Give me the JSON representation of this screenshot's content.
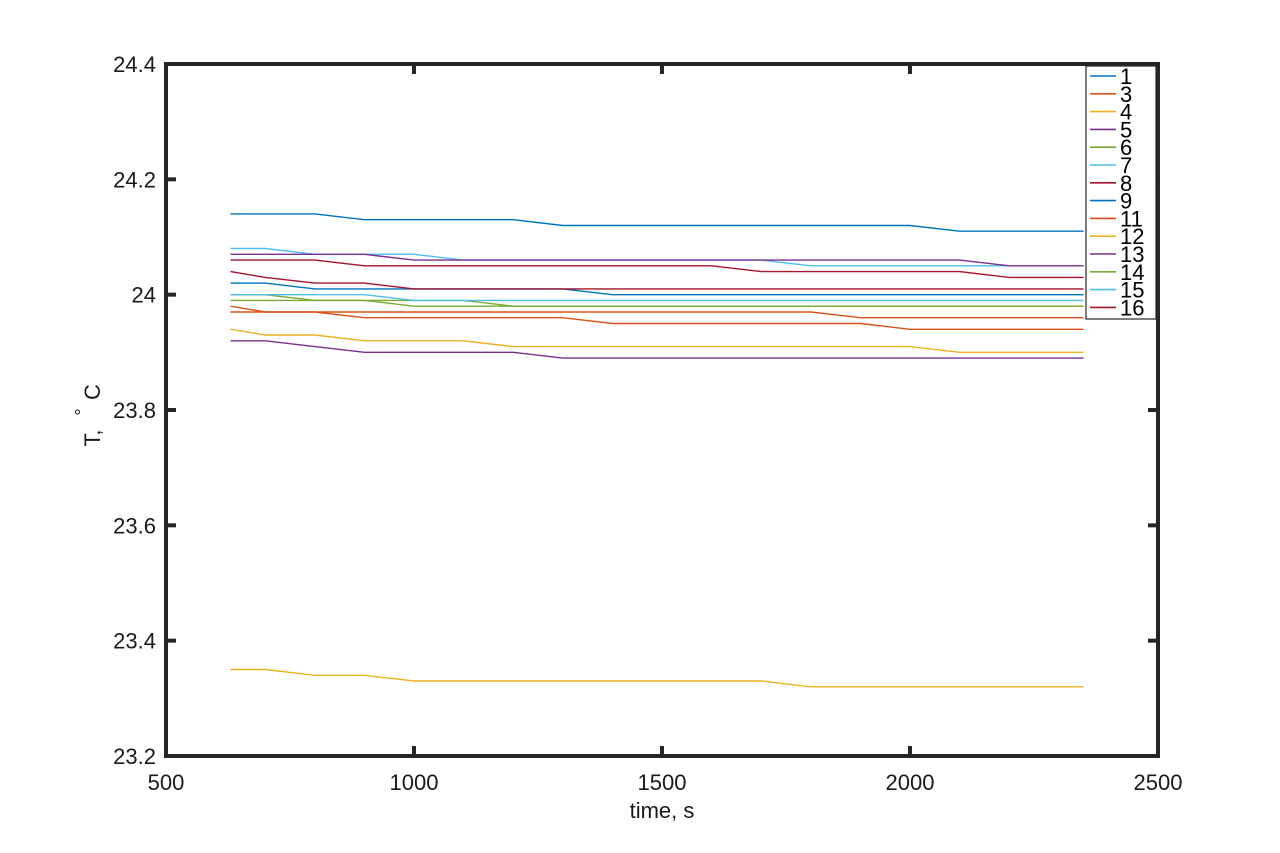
{
  "chart_data": {
    "type": "line",
    "title": "",
    "xlabel": "time, s",
    "ylabel_parts": [
      "T,",
      "°",
      "C"
    ],
    "xlim": [
      500,
      2500
    ],
    "ylim": [
      23.2,
      24.4
    ],
    "xticks": [
      500,
      1000,
      1500,
      2000,
      2500
    ],
    "xtick_labels": [
      "500",
      "1000",
      "1500",
      "2000",
      "2500"
    ],
    "yticks": [
      23.2,
      23.4,
      23.6,
      23.8,
      24.0,
      24.2,
      24.4
    ],
    "ytick_labels": [
      "23.2",
      "23.4",
      "23.6",
      "23.8",
      "24",
      "24.2",
      "24.4"
    ],
    "grid": false,
    "legend_position": "top-right",
    "x": [
      630,
      700,
      800,
      900,
      1000,
      1100,
      1200,
      1300,
      1400,
      1500,
      1600,
      1700,
      1800,
      1900,
      2000,
      2100,
      2200,
      2300,
      2350
    ],
    "series": [
      {
        "name": "1",
        "color": "#0072BD",
        "values": [
          24.02,
          24.02,
          24.01,
          24.01,
          24.01,
          24.01,
          24.01,
          24.01,
          24.0,
          24.0,
          24.0,
          24.0,
          24.0,
          24.0,
          24.0,
          24.0,
          24.0,
          24.0,
          24.0
        ]
      },
      {
        "name": "3",
        "color": "#D95319",
        "values": [
          23.98,
          23.97,
          23.97,
          23.96,
          23.96,
          23.96,
          23.96,
          23.96,
          23.95,
          23.95,
          23.95,
          23.95,
          23.95,
          23.95,
          23.94,
          23.94,
          23.94,
          23.94,
          23.94
        ]
      },
      {
        "name": "4",
        "color": "#EDB120",
        "values": [
          23.94,
          23.93,
          23.93,
          23.92,
          23.92,
          23.92,
          23.91,
          23.91,
          23.91,
          23.91,
          23.91,
          23.91,
          23.91,
          23.91,
          23.91,
          23.9,
          23.9,
          23.9,
          23.9
        ]
      },
      {
        "name": "5",
        "color": "#7E2F8E",
        "values": [
          23.92,
          23.92,
          23.91,
          23.9,
          23.9,
          23.9,
          23.9,
          23.89,
          23.89,
          23.89,
          23.89,
          23.89,
          23.89,
          23.89,
          23.89,
          23.89,
          23.89,
          23.89,
          23.89
        ]
      },
      {
        "name": "6",
        "color": "#77AC30",
        "values": [
          24.0,
          24.0,
          23.99,
          23.99,
          23.98,
          23.98,
          23.98,
          23.98,
          23.98,
          23.98,
          23.98,
          23.98,
          23.98,
          23.98,
          23.98,
          23.98,
          23.98,
          23.98,
          23.98
        ]
      },
      {
        "name": "7",
        "color": "#4DBEEE",
        "values": [
          24.08,
          24.08,
          24.07,
          24.07,
          24.07,
          24.06,
          24.06,
          24.06,
          24.06,
          24.06,
          24.06,
          24.06,
          24.05,
          24.05,
          24.05,
          24.05,
          24.05,
          24.05,
          24.05
        ]
      },
      {
        "name": "8",
        "color": "#A2142F",
        "values": [
          24.06,
          24.06,
          24.06,
          24.05,
          24.05,
          24.05,
          24.05,
          24.05,
          24.05,
          24.05,
          24.05,
          24.04,
          24.04,
          24.04,
          24.04,
          24.04,
          24.03,
          24.03,
          24.03
        ]
      },
      {
        "name": "9",
        "color": "#0072BD",
        "values": [
          24.14,
          24.14,
          24.14,
          24.13,
          24.13,
          24.13,
          24.13,
          24.12,
          24.12,
          24.12,
          24.12,
          24.12,
          24.12,
          24.12,
          24.12,
          24.11,
          24.11,
          24.11,
          24.11
        ]
      },
      {
        "name": "11",
        "color": "#D95319",
        "values": [
          23.97,
          23.97,
          23.97,
          23.97,
          23.97,
          23.97,
          23.97,
          23.97,
          23.97,
          23.97,
          23.97,
          23.97,
          23.97,
          23.96,
          23.96,
          23.96,
          23.96,
          23.96,
          23.96
        ]
      },
      {
        "name": "12",
        "color": "#EDB120",
        "values": [
          23.35,
          23.35,
          23.34,
          23.34,
          23.33,
          23.33,
          23.33,
          23.33,
          23.33,
          23.33,
          23.33,
          23.33,
          23.32,
          23.32,
          23.32,
          23.32,
          23.32,
          23.32,
          23.32
        ]
      },
      {
        "name": "13",
        "color": "#7E2F8E",
        "values": [
          24.07,
          24.07,
          24.07,
          24.07,
          24.06,
          24.06,
          24.06,
          24.06,
          24.06,
          24.06,
          24.06,
          24.06,
          24.06,
          24.06,
          24.06,
          24.06,
          24.05,
          24.05,
          24.05
        ]
      },
      {
        "name": "14",
        "color": "#77AC30",
        "values": [
          23.99,
          23.99,
          23.99,
          23.99,
          23.99,
          23.99,
          23.98,
          23.98,
          23.98,
          23.98,
          23.98,
          23.98,
          23.98,
          23.98,
          23.98,
          23.98,
          23.98,
          23.98,
          23.98
        ]
      },
      {
        "name": "15",
        "color": "#4DBEEE",
        "values": [
          24.0,
          24.0,
          24.0,
          24.0,
          23.99,
          23.99,
          23.99,
          23.99,
          23.99,
          23.99,
          23.99,
          23.99,
          23.99,
          23.99,
          23.99,
          23.99,
          23.99,
          23.99,
          23.99
        ]
      },
      {
        "name": "16",
        "color": "#A2142F",
        "values": [
          24.04,
          24.03,
          24.02,
          24.02,
          24.01,
          24.01,
          24.01,
          24.01,
          24.01,
          24.01,
          24.01,
          24.01,
          24.01,
          24.01,
          24.01,
          24.01,
          24.01,
          24.01,
          24.01
        ]
      }
    ]
  }
}
